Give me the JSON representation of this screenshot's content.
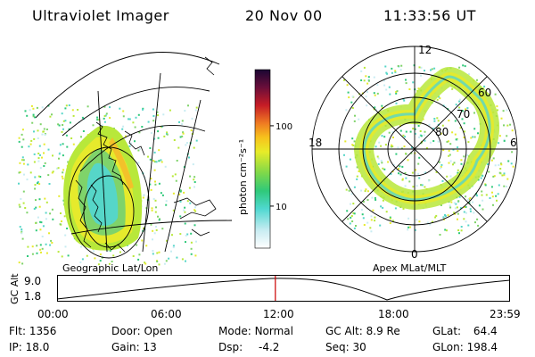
{
  "header": {
    "instrument": "Ultraviolet Imager",
    "date": "20 Nov 00",
    "time": "11:33:56 UT"
  },
  "colorbar": {
    "unit_label": "photon cm⁻²s⁻¹",
    "ticks": [
      {
        "label": "100",
        "value": 100
      },
      {
        "label": "10",
        "value": 10
      }
    ],
    "range": [
      3,
      500
    ],
    "scale": "log"
  },
  "left_panel": {
    "label": "Geographic Lat/Lon"
  },
  "right_panel": {
    "label": "Apex MLat/MLT",
    "mlt_labels": {
      "top": "12",
      "right": "6",
      "bottom": "0",
      "left": "18"
    },
    "lat_labels": [
      "60",
      "70",
      "80"
    ]
  },
  "timeline": {
    "axis_title": "GC Alt",
    "y_ticks": [
      "9.0",
      "1.8"
    ],
    "x_ticks": [
      "00:00",
      "06:00",
      "12:00",
      "18:00",
      "23:59"
    ],
    "current_time_fraction": 0.4819,
    "marker_color": "#cc0000"
  },
  "status": [
    [
      {
        "key": "Flt:",
        "value": "1356"
      },
      {
        "key": "Door:",
        "value": "Open"
      },
      {
        "key": "Mode:",
        "value": "Normal"
      },
      {
        "key": "GC Alt:",
        "value": "8.9 Re"
      },
      {
        "key": "GLat:",
        "value": "64.4"
      }
    ],
    [
      {
        "key": "IP:",
        "value": "18.0"
      },
      {
        "key": "Gain:",
        "value": "13"
      },
      {
        "key": "Dsp:",
        "value": "-4.2"
      },
      {
        "key": "Seq:",
        "value": "30"
      },
      {
        "key": "GLon:",
        "value": "198.4"
      }
    ]
  ]
}
